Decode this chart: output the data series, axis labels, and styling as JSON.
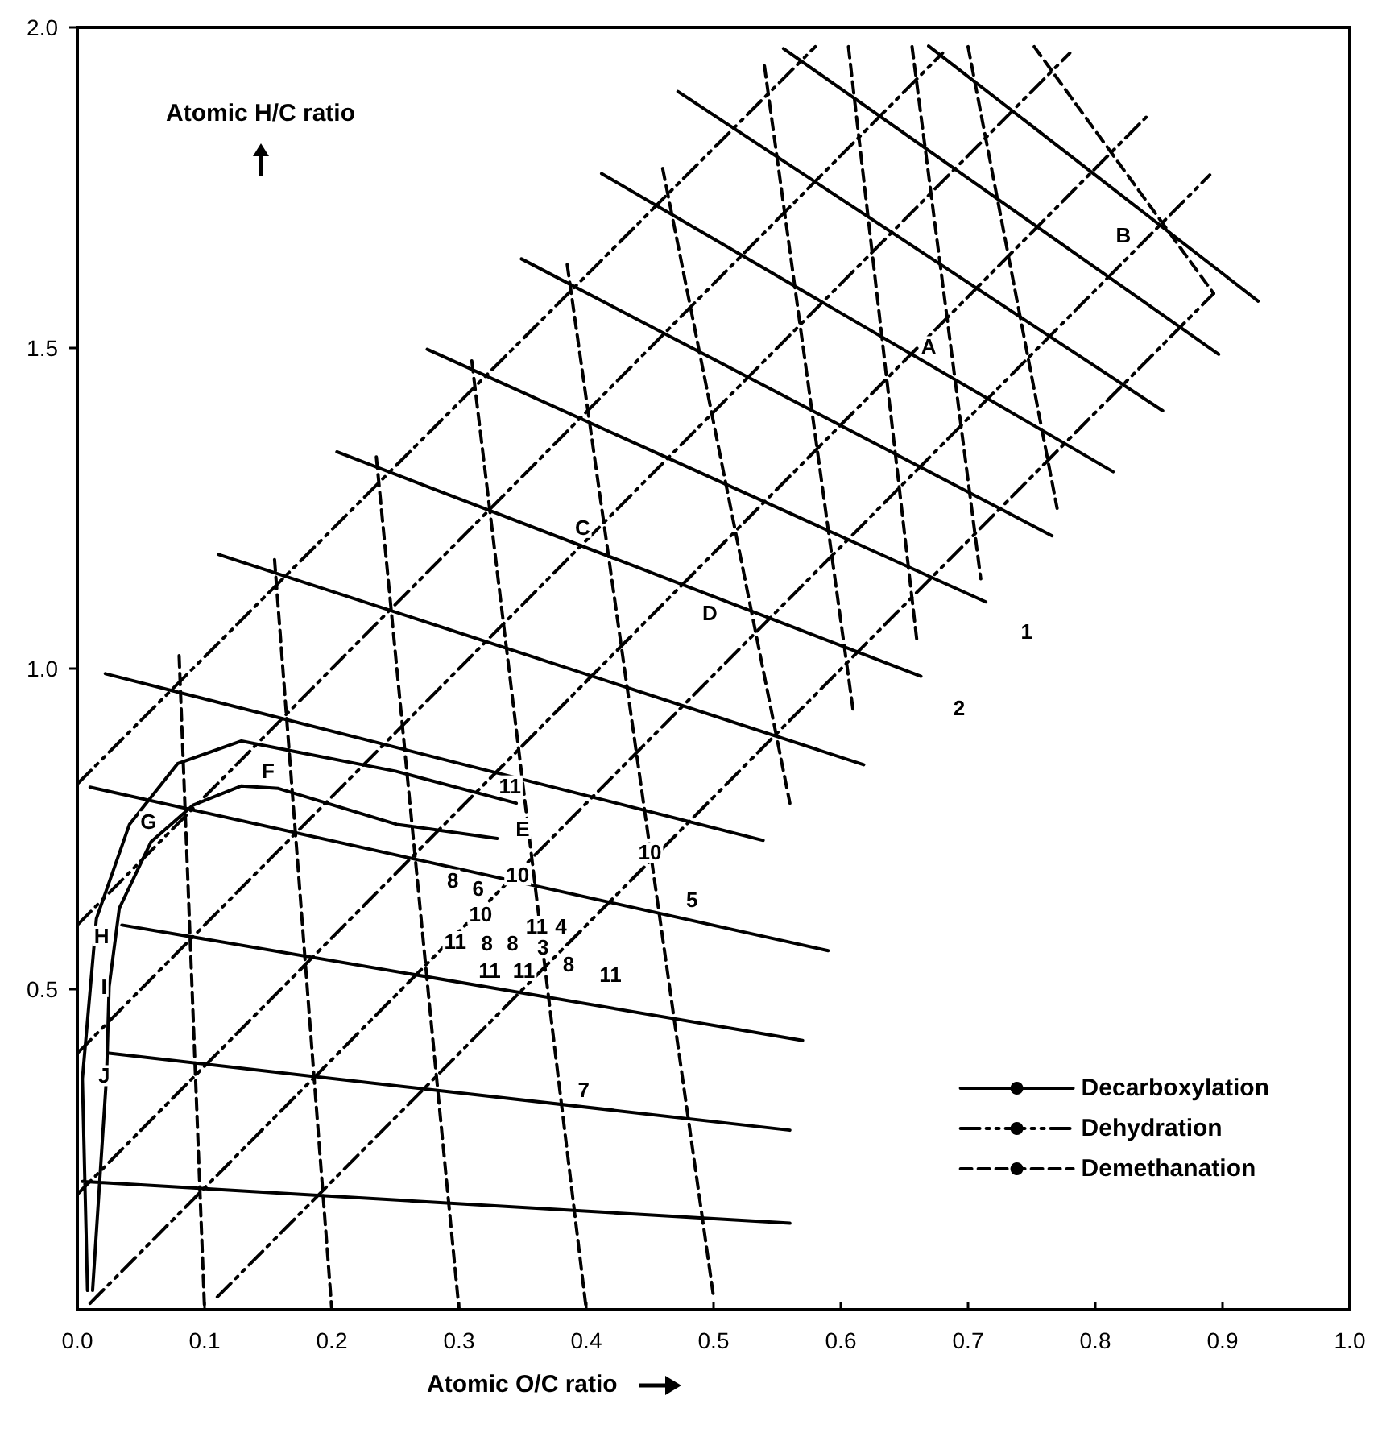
{
  "chart_data": {
    "type": "line",
    "xlabel": "Atomic O/C ratio",
    "ylabel": "Atomic H/C ratio",
    "xlim": [
      0,
      1
    ],
    "ylim": [
      0,
      2
    ],
    "xticks": [
      {
        "value": 0,
        "label": "0.0"
      },
      0.1,
      0.2,
      0.3,
      0.4,
      0.5,
      0.6,
      0.7,
      0.8,
      0.9,
      {
        "value": 1,
        "label": "1.0"
      }
    ],
    "yticks": [
      0.5,
      {
        "value": 1,
        "label": "1.0"
      },
      1.5,
      {
        "value": 2,
        "label": "2.0"
      }
    ],
    "grid": false,
    "marker": "none",
    "legend": "bottom right",
    "series": [
      {
        "name": "Decarboxylation",
        "color": "#000000",
        "line_style": "solid",
        "x": [
          0.008,
          0.004,
          0.015,
          0.041,
          0.079,
          0.129,
          0.162,
          0.25,
          0.345,
          null,
          0.012,
          0.023,
          0.025,
          0.033,
          0.058,
          0.091,
          0.129,
          0.158,
          0.251,
          0.33,
          null,
          0.004,
          0.56,
          null,
          0.025,
          0.56,
          null,
          0.035,
          0.57,
          null,
          0.01,
          0.59,
          null,
          0.022,
          0.539,
          null,
          0.111,
          0.354,
          0.618,
          null,
          0.204,
          0.663,
          null,
          0.275,
          0.714,
          null,
          0.349,
          0.766,
          null,
          0.412,
          0.814,
          null,
          0.472,
          0.853,
          null,
          0.555,
          0.897,
          null,
          0.669,
          0.928
        ],
        "values": [
          0.03,
          0.36,
          0.61,
          0.757,
          0.852,
          0.887,
          0.874,
          0.84,
          0.79,
          null,
          0.03,
          0.365,
          0.504,
          0.626,
          0.73,
          0.787,
          0.817,
          0.813,
          0.757,
          0.735,
          null,
          0.2,
          0.135,
          null,
          0.4,
          0.28,
          null,
          0.6,
          0.42,
          null,
          0.815,
          0.56,
          null,
          0.992,
          0.732,
          null,
          1.178,
          1.021,
          0.85,
          null,
          1.338,
          0.988,
          null,
          1.498,
          1.104,
          null,
          1.639,
          1.207,
          null,
          1.772,
          1.307,
          null,
          1.9,
          1.402,
          null,
          1.967,
          1.49,
          null,
          1.971,
          1.573
        ]
      },
      {
        "name": "Dehydration",
        "color": "#000000",
        "line_style": "dashdot",
        "x": [
          0.0,
          0.58,
          null,
          0.0,
          0.68,
          null,
          0.0,
          0.78,
          null,
          0.0,
          0.84,
          null,
          0.01,
          0.89,
          null,
          0.11,
          0.893
        ],
        "values": [
          0.82,
          1.97,
          null,
          0.6,
          1.96,
          null,
          0.4,
          1.96,
          null,
          0.18,
          1.86,
          null,
          0.01,
          1.77,
          null,
          0.02,
          1.585
        ]
      },
      {
        "name": "Demethanation",
        "color": "#000000",
        "line_style": "dashed",
        "x": [
          0.08,
          0.1,
          null,
          0.155,
          0.2,
          null,
          0.235,
          0.3,
          null,
          0.31,
          0.4,
          null,
          0.385,
          0.5,
          null,
          0.46,
          0.56,
          null,
          0.54,
          0.61,
          null,
          0.606,
          0.66,
          null,
          0.656,
          0.71,
          null,
          0.7,
          0.77,
          null,
          0.752,
          0.893
        ],
        "values": [
          1.02,
          0.0,
          null,
          1.17,
          0.0,
          null,
          1.33,
          0.0,
          null,
          1.48,
          0.0,
          null,
          1.63,
          0.02,
          null,
          1.78,
          0.79,
          null,
          1.94,
          0.93,
          null,
          1.97,
          1.04,
          null,
          1.97,
          1.14,
          null,
          1.97,
          1.25,
          null,
          1.97,
          1.585
        ]
      }
    ],
    "annotations": [
      {
        "text": "A",
        "x": 0.669,
        "y": 1.502
      },
      {
        "text": "B",
        "x": 0.822,
        "y": 1.676
      },
      {
        "text": "C",
        "x": 0.397,
        "y": 1.22
      },
      {
        "text": "D",
        "x": 0.497,
        "y": 1.087
      },
      {
        "text": "E",
        "x": 0.35,
        "y": 0.75
      },
      {
        "text": "F",
        "x": 0.15,
        "y": 0.84
      },
      {
        "text": "G",
        "x": 0.056,
        "y": 0.761
      },
      {
        "text": "H",
        "x": 0.019,
        "y": 0.583
      },
      {
        "text": "I",
        "x": 0.021,
        "y": 0.504
      },
      {
        "text": "J",
        "x": 0.021,
        "y": 0.365
      },
      {
        "text": "1",
        "x": 0.746,
        "y": 1.058
      },
      {
        "text": "2",
        "x": 0.693,
        "y": 0.939
      },
      {
        "text": "11",
        "x": 0.34,
        "y": 0.817
      },
      {
        "text": "10",
        "x": 0.45,
        "y": 0.713
      },
      {
        "text": "5",
        "x": 0.483,
        "y": 0.639
      },
      {
        "text": "8",
        "x": 0.295,
        "y": 0.67
      },
      {
        "text": "6",
        "x": 0.315,
        "y": 0.657
      },
      {
        "text": "10",
        "x": 0.346,
        "y": 0.678
      },
      {
        "text": "10",
        "x": 0.317,
        "y": 0.617
      },
      {
        "text": "11",
        "x": 0.297,
        "y": 0.574
      },
      {
        "text": "8",
        "x": 0.322,
        "y": 0.572
      },
      {
        "text": "8",
        "x": 0.342,
        "y": 0.572
      },
      {
        "text": "11",
        "x": 0.361,
        "y": 0.598
      },
      {
        "text": "4",
        "x": 0.38,
        "y": 0.598
      },
      {
        "text": "3",
        "x": 0.366,
        "y": 0.565
      },
      {
        "text": "11",
        "x": 0.324,
        "y": 0.529
      },
      {
        "text": "11",
        "x": 0.351,
        "y": 0.529
      },
      {
        "text": "8",
        "x": 0.386,
        "y": 0.539
      },
      {
        "text": "11",
        "x": 0.419,
        "y": 0.522
      },
      {
        "text": "7",
        "x": 0.398,
        "y": 0.343
      }
    ]
  }
}
